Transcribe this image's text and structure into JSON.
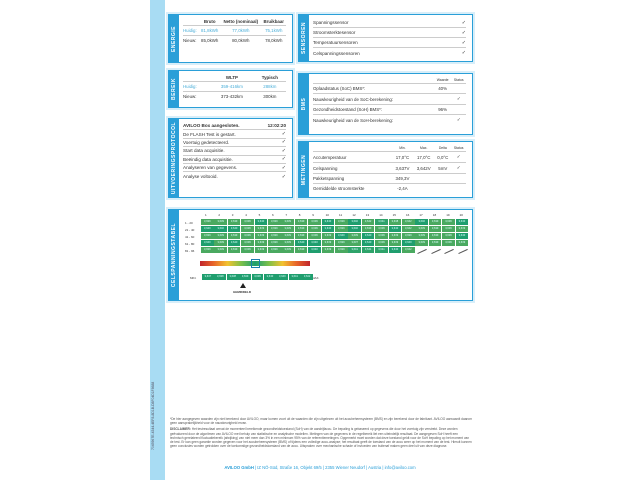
{
  "doc_id": "7045967E-4344-4EF8-8D1B-D8F04D1F8688",
  "energie": {
    "label": "ENERGIE",
    "headers": [
      "",
      "Bruto",
      "Netto (nominaal)",
      "Bruikbaar"
    ],
    "rows": [
      [
        "Huidig:",
        "81,8kWh",
        "77,0kWh",
        "75,1kWh"
      ],
      [
        "Nieuw:",
        "85,0kWh",
        "80,0kWh",
        "78,0kWh"
      ]
    ]
  },
  "bereik": {
    "label": "BEREIK",
    "headers": [
      "",
      "WLTP",
      "Typisch"
    ],
    "rows": [
      [
        "Huidig:",
        "359-416km",
        "288km"
      ],
      [
        "Nieuw:",
        "373-432km",
        "300km"
      ]
    ]
  },
  "protocol": {
    "label": "UITVOERINGSPROTOCOL",
    "title": "AVILOO Box aangesloten.",
    "time": "12:02:20",
    "items": [
      "De FLASH Test is gestart.",
      "Voertuig gedetecteerd.",
      "Start data acquisitie.",
      "Beëindig data acquisitie.",
      "Analyseren van gegevens.",
      "Analyse voltooid."
    ],
    "check": "✓"
  },
  "sensoren": {
    "label": "SENSOREN",
    "items": [
      "Spanningssensor",
      "Stroomsterktesensor",
      "Temperatuursensoren",
      "Celspanningssensoren"
    ]
  },
  "bms": {
    "label": "BMS",
    "headers": [
      "",
      "Waarde",
      "Status"
    ],
    "rows": [
      [
        "Oplaadstatus (SoC) BMS*:",
        "40%",
        ""
      ],
      [
        "Nauwkeurigheid van de SoC-berekening:",
        "",
        "✓"
      ],
      [
        "Gezondheidstoestand (SoH) BMS*:",
        "96%",
        ""
      ],
      [
        "Nauwkeurigheid van de SoH-berekening:",
        "",
        "✓"
      ]
    ]
  },
  "metingen": {
    "label": "METINGEN",
    "headers": [
      "",
      "Min.",
      "Max.",
      "Delta",
      "Status"
    ],
    "rows": [
      [
        "Accutemperatuur",
        "17,0°C",
        "17,0°C",
        "0,0°C",
        "✓"
      ],
      [
        "Celspanning",
        "3,637V",
        "3,642V",
        "5mV",
        "✓"
      ],
      [
        "Pakketspanning",
        "349,3V",
        "",
        "",
        ""
      ],
      [
        "Gemiddelde stroomsterkte",
        "-2,4A",
        "",
        "",
        ""
      ]
    ]
  },
  "cel": {
    "label": "CELSPANNINGSTABEL",
    "columns": [
      "1",
      "2",
      "3",
      "4",
      "5",
      "6",
      "7",
      "8",
      "9",
      "10",
      "11",
      "12",
      "13",
      "14",
      "15",
      "16",
      "17",
      "18",
      "19",
      "20"
    ],
    "row_labels": [
      "1 - 20",
      "21 - 40",
      "41 - 60",
      "61 - 80",
      "81 - 96"
    ],
    "values": [
      [
        "3,639",
        "3,639",
        "3,639",
        "3,639",
        "3,640",
        "3,639",
        "3,639",
        "3,639",
        "3,639",
        "3,640",
        "3,639",
        "3,640",
        "3,642",
        "3,641",
        "3,638",
        "3,642",
        "3,640",
        "3,639",
        "3,639",
        "3,640"
      ],
      [
        "3,640",
        "3,640",
        "3,640",
        "3,639",
        "3,639",
        "3,639",
        "3,639",
        "3,639",
        "3,639",
        "3,640",
        "3,639",
        "3,640",
        "3,639",
        "3,639",
        "3,640",
        "3,642",
        "3,639",
        "3,639",
        "3,639",
        "3,639"
      ],
      [
        "3,639",
        "3,639",
        "3,639",
        "3,639",
        "3,639",
        "3,639",
        "3,639",
        "3,639",
        "3,639",
        "3,639",
        "3,640",
        "3,639",
        "3,640",
        "3,639",
        "3,639",
        "3,639",
        "3,639",
        "3,639",
        "3,639",
        "3,640"
      ],
      [
        "3,640",
        "3,639",
        "3,640",
        "3,639",
        "3,639",
        "3,639",
        "3,639",
        "3,640",
        "3,640",
        "3,639",
        "3,639",
        "3,637",
        "3,640",
        "3,639",
        "3,639",
        "3,640",
        "3,639",
        "3,639",
        "3,639",
        "3,639"
      ],
      [
        "3,639",
        "3,639",
        "3,639",
        "3,639",
        "3,639",
        "3,639",
        "3,639",
        "3,639",
        "3,640",
        "3,639",
        "3,639",
        "3,641",
        "3,641",
        "3,641",
        "3,640",
        "3,642"
      ]
    ],
    "scale": [
      "3,637",
      "3,638",
      "3,638",
      "3,639",
      "3,639",
      "3,640",
      "3,640",
      "3,641",
      "3,642"
    ],
    "min_label": "MIN.",
    "max_label": "MAX.",
    "avg_label": "GEMIDDELD"
  },
  "footer": {
    "note": "*De hier aangegeven waarden zijn niet berekend door AVILOO, maar komen voort uit de waarden die zijn uitgelezen uit het accubeheersysteem (BMS) en zijn berekend door de fabrikant. AVILOO aanvaardt daarom geen aansprakelijkheid voor de nauwkeurigheid ervan.",
    "disclaimer_label": "DISCLAIMER:",
    "disclaimer": "Het testresultaat omvat de momenteel bereikende gezondheidstoestand (SoH) van de aandrijfaccu. De bepaling is gebaseerd op gegevens die door het voertuig zijn verstrekt. Deze worden geëvalueerd door de algoritmen van AVILOO met behulp van statistische en analytische modellen. Metingen van de gegevens in de regelbereik liet een uiteindelijk resultaat. De aangegeven SoH heeft een technisch gerelateerd fluctuatiebereik (afwijking) van niet meer dan 3% in een minimum 95% van de referentiemetingen. Opgemerkt moet worden dat deze toestand geldt voor de SoH bepaling op het moment van de test. Er kan geen garantie worden gegeven voor het accubeheersysteem (BMS) of tijdens een volledige accu-analyse; het resultaat geeft de toestand van de accu weer op het moment van de test. Hieruit kunnen geen conclusies worden getrokken over de toekomstige gezondheidstoestand van de accu. Uitspraken over mechanische schade of invloeden van buitenaf maken geen deel uit van deze diagnose.",
    "company": "AVILOO GmbH",
    "address": "| IZ NÖ-Süd, Straße 16, Objekt 69/5 | 2355 Wiener Neudorf | Austria | info@aviloo.com"
  }
}
